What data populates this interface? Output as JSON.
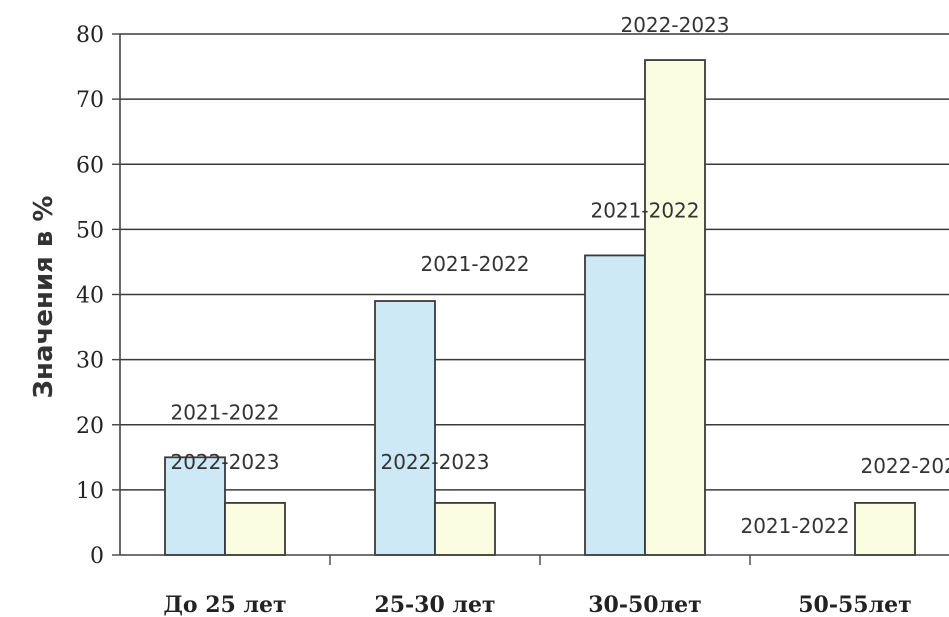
{
  "chart_data": {
    "type": "bar",
    "title": "",
    "xlabel": "",
    "ylabel": "Значения в %",
    "ylim": [
      0,
      80
    ],
    "yticks": [
      0,
      10,
      20,
      30,
      40,
      50,
      60,
      70,
      80
    ],
    "grid": true,
    "categories": [
      "До 25 лет",
      "25-30 лет",
      "30-50лет",
      "50-55лет"
    ],
    "series": [
      {
        "name": "2021-2022",
        "color": "#cde9f5",
        "values": [
          15,
          39,
          46,
          0
        ]
      },
      {
        "name": "2022-2023",
        "color": "#fafde0",
        "values": [
          8,
          8,
          76,
          8
        ]
      }
    ]
  }
}
